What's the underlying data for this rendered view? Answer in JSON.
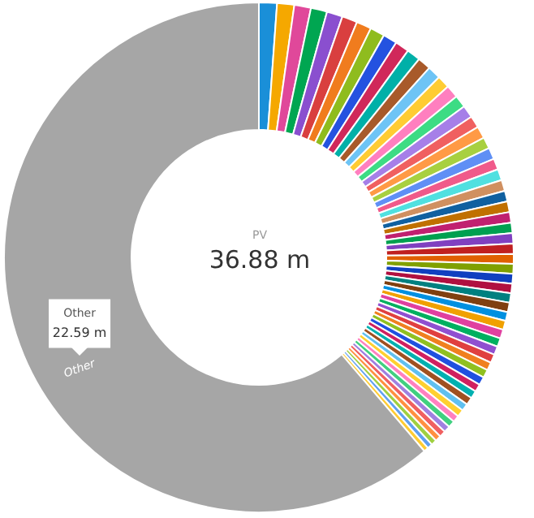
{
  "chart_data": {
    "type": "donut",
    "title": "PV",
    "subtitle": "36.88 m",
    "categories": [
      null,
      null,
      null,
      null,
      null,
      null,
      null,
      null,
      null,
      null,
      null,
      null,
      null,
      null,
      null,
      null,
      null,
      null,
      null,
      null,
      null,
      null,
      null,
      null,
      null,
      null,
      null,
      null,
      null,
      null,
      null,
      null,
      null,
      null,
      null,
      null,
      null,
      null,
      null,
      null,
      null,
      null,
      null,
      null,
      null,
      null,
      null,
      null,
      null,
      null,
      null,
      null,
      null,
      null,
      null,
      null,
      null,
      null,
      "Other"
    ],
    "values": [
      0.42,
      0.4,
      0.39,
      0.38,
      0.37,
      0.36,
      0.35,
      0.34,
      0.33,
      0.33,
      0.32,
      0.31,
      0.31,
      0.3,
      0.3,
      0.29,
      0.29,
      0.28,
      0.28,
      0.27,
      0.27,
      0.26,
      0.26,
      0.26,
      0.25,
      0.25,
      0.25,
      0.24,
      0.24,
      0.24,
      0.23,
      0.23,
      0.23,
      0.22,
      0.22,
      0.22,
      0.21,
      0.21,
      0.21,
      0.2,
      0.2,
      0.2,
      0.19,
      0.19,
      0.19,
      0.18,
      0.18,
      0.18,
      0.17,
      0.17,
      0.16,
      0.16,
      0.15,
      0.15,
      0.14,
      0.13,
      0.12,
      0.11,
      22.59
    ],
    "value_labels": [
      null,
      null,
      null,
      null,
      null,
      null,
      null,
      null,
      null,
      null,
      null,
      null,
      null,
      null,
      null,
      null,
      null,
      null,
      null,
      null,
      null,
      null,
      null,
      null,
      null,
      null,
      null,
      null,
      null,
      null,
      null,
      null,
      null,
      null,
      null,
      null,
      null,
      null,
      null,
      null,
      null,
      null,
      null,
      null,
      null,
      null,
      null,
      null,
      null,
      null,
      null,
      null,
      null,
      null,
      null,
      null,
      null,
      null,
      "22.59 m"
    ],
    "colors": [
      "#1a8fd8",
      "#f5a800",
      "#e0489a",
      "#00a651",
      "#8a4fcf",
      "#d93f3f",
      "#f07c1e",
      "#8fbc1e",
      "#2452e0",
      "#d0285a",
      "#00b0a8",
      "#a85a2a",
      "#6ec4f5",
      "#ffcc33",
      "#ff7fbf",
      "#3ddc84",
      "#a67fe8",
      "#f06060",
      "#ff9a45",
      "#a8d040",
      "#5f8ff5",
      "#f05a8a",
      "#50e0e0",
      "#d09060",
      "#1060a0",
      "#c07000",
      "#c02070",
      "#00a050",
      "#8040c0",
      "#c02020",
      "#e06000",
      "#80a000",
      "#1040c0",
      "#b01040",
      "#008080",
      "#804010",
      "#0090e0",
      "#f0a000",
      "#e040a0",
      "#00b060",
      "#9050d0",
      "#e04040",
      "#f08020",
      "#90c020",
      "#2050e0",
      "#d02060",
      "#00b0b0",
      "#a05020",
      "#60c0f0",
      "#ffd030",
      "#ff80c0",
      "#40d080",
      "#a080e0",
      "#f06060",
      "#ff9040",
      "#a0d040",
      "#60a0f0",
      "#ffcc33",
      "#a6a6a6"
    ]
  }
}
